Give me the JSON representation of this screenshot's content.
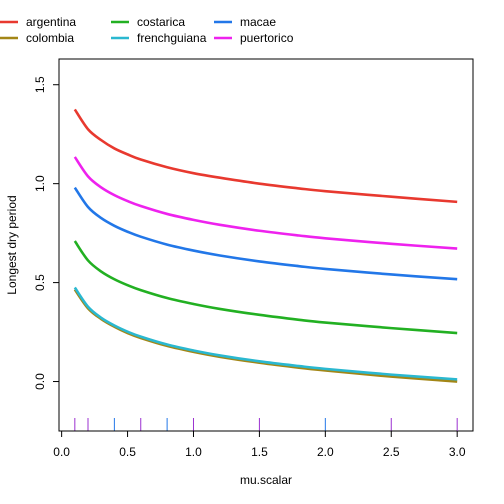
{
  "chart_data": {
    "type": "line",
    "title": "",
    "xlabel": "mu.scalar",
    "ylabel": "Longest dry period",
    "xlim": [
      -0.02,
      3.12
    ],
    "ylim": [
      -0.25,
      1.63
    ],
    "xticks": [
      "0.0",
      "0.5",
      "1.0",
      "1.5",
      "2.0",
      "2.5",
      "3.0"
    ],
    "xtick_values": [
      0,
      0.5,
      1.0,
      1.5,
      2.0,
      2.5,
      3.0
    ],
    "yticks": [
      "0.0",
      "0.5",
      "1.0",
      "1.5"
    ],
    "ytick_values": [
      0,
      0.5,
      1.0,
      1.5
    ],
    "grid": false,
    "legend_position": "top-left",
    "x": [
      0.1,
      0.2,
      0.3,
      0.4,
      0.5,
      0.6,
      0.8,
      1.0,
      1.2,
      1.5,
      1.8,
      2.0,
      2.5,
      3.0
    ],
    "series": [
      {
        "name": "argentina",
        "color": "#e8392f",
        "values": [
          1.375,
          1.275,
          1.22,
          1.178,
          1.148,
          1.122,
          1.083,
          1.053,
          1.03,
          1.0,
          0.976,
          0.962,
          0.934,
          0.908
        ]
      },
      {
        "name": "colombia",
        "color": "#a38616",
        "values": [
          0.465,
          0.37,
          0.316,
          0.277,
          0.245,
          0.22,
          0.18,
          0.15,
          0.125,
          0.095,
          0.07,
          0.056,
          0.025,
          0.0
        ]
      },
      {
        "name": "costarica",
        "color": "#22b022",
        "values": [
          0.71,
          0.612,
          0.556,
          0.517,
          0.487,
          0.462,
          0.422,
          0.392,
          0.367,
          0.337,
          0.312,
          0.298,
          0.27,
          0.245
        ]
      },
      {
        "name": "frenchguiana",
        "color": "#2ab8d0",
        "values": [
          0.475,
          0.378,
          0.322,
          0.283,
          0.252,
          0.227,
          0.187,
          0.157,
          0.132,
          0.102,
          0.078,
          0.064,
          0.035,
          0.011
        ]
      },
      {
        "name": "macae",
        "color": "#2277e8",
        "values": [
          0.98,
          0.882,
          0.826,
          0.787,
          0.757,
          0.732,
          0.692,
          0.662,
          0.637,
          0.607,
          0.583,
          0.569,
          0.541,
          0.517
        ]
      },
      {
        "name": "puertorico",
        "color": "#ee22ee",
        "values": [
          1.135,
          1.037,
          0.981,
          0.942,
          0.912,
          0.887,
          0.847,
          0.817,
          0.792,
          0.762,
          0.738,
          0.724,
          0.696,
          0.672
        ]
      }
    ],
    "rug": [
      {
        "x": 0.1,
        "color": "#9b30d0"
      },
      {
        "x": 0.2,
        "color": "#9b30d0"
      },
      {
        "x": 0.4,
        "color": "#2277e8"
      },
      {
        "x": 0.6,
        "color": "#9b30d0"
      },
      {
        "x": 0.8,
        "color": "#2277e8"
      },
      {
        "x": 1.0,
        "color": "#9b30d0"
      },
      {
        "x": 1.5,
        "color": "#9b30d0"
      },
      {
        "x": 2.0,
        "color": "#2277e8"
      },
      {
        "x": 2.5,
        "color": "#9b30d0"
      },
      {
        "x": 3.0,
        "color": "#9b30d0"
      }
    ]
  }
}
